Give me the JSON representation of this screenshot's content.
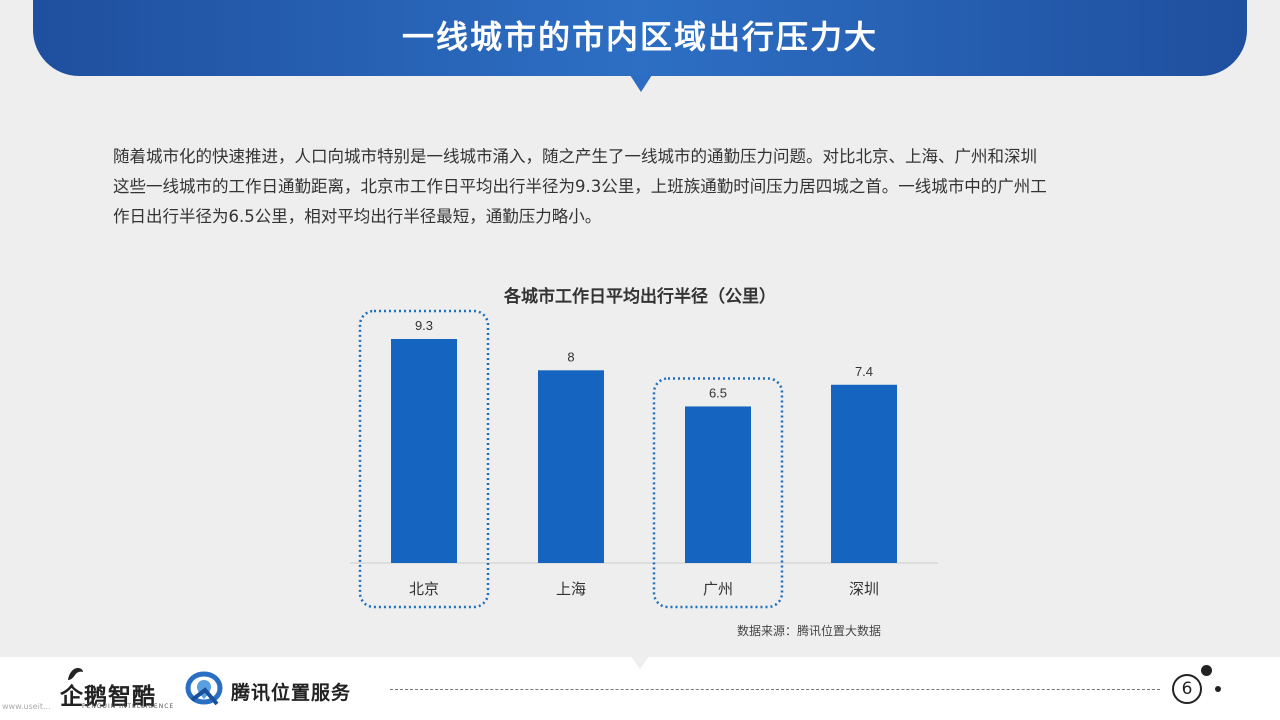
{
  "header": {
    "title": "一线城市的市内区域出行压力大"
  },
  "intro": {
    "lines": [
      "随着城市化的快速推进，人口向城市特别是一线城市涌入，随之产生了一线城市的通勤压力问题。对比北京、上海、广州和深圳",
      "这些一线城市的工作日通勤距离，北京市工作日平均出行半径为9.3公里，上班族通勤时间压力居四城之首。一线城市中的广州工",
      "作日出行半径为6.5公里，相对平均出行半径最短，通勤压力略小。"
    ]
  },
  "chart_data": {
    "type": "bar",
    "title": "各城市工作日平均出行半径（公里）",
    "categories": [
      "北京",
      "上海",
      "广州",
      "深圳"
    ],
    "values": [
      9.3,
      8,
      6.5,
      7.4
    ],
    "value_labels": [
      "9.3",
      "8",
      "6.5",
      "7.4"
    ],
    "highlighted_categories": [
      "北京",
      "广州"
    ],
    "bar_color": "#1565c0",
    "highlight_color": "#1f6fbf",
    "grid": false,
    "legend": "none",
    "source": "数据来源：腾讯位置大数据"
  },
  "footer": {
    "logo_left_cn": "企鹅智酷",
    "logo_left_en": "PENGUIN INTELLIGENCE",
    "logo_right_cn": "腾讯位置服务",
    "page_number": "6",
    "left_icon": "penguin-icon",
    "right_icon": "map-location-icon"
  },
  "colors": {
    "banner": "#2a66b8",
    "background": "#eeeeee"
  },
  "watermark": "www.useit..."
}
